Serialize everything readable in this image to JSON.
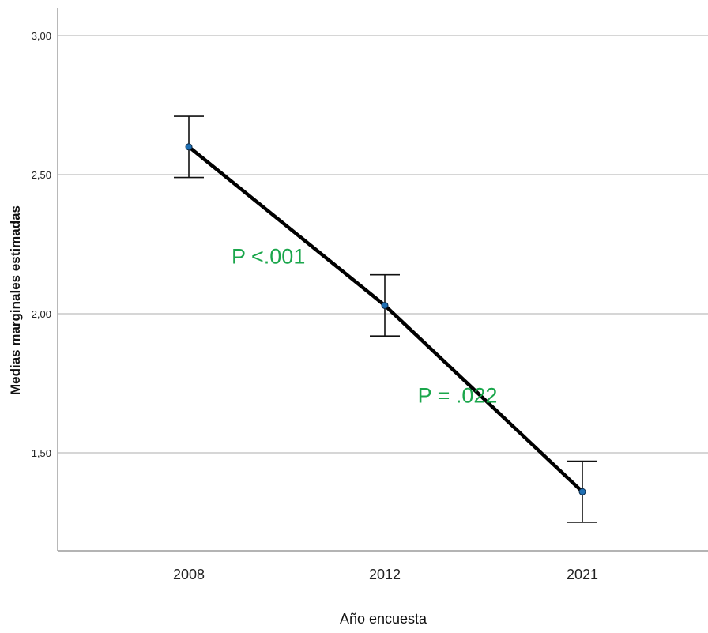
{
  "chart_data": {
    "type": "line",
    "title": "",
    "xlabel": "Año encuesta",
    "ylabel": "Medias marginales estimadas",
    "categories": [
      "2008",
      "2012",
      "2021"
    ],
    "series": [
      {
        "values": [
          2.6,
          2.03,
          1.36
        ],
        "error_low": [
          2.49,
          1.92,
          1.25
        ],
        "error_high": [
          2.71,
          2.14,
          1.47
        ],
        "color": "#000000",
        "marker_color": "#1f6fb3"
      }
    ],
    "ylim": [
      1.15,
      3.1
    ],
    "yticks": [
      1.5,
      2.0,
      2.5,
      3.0
    ],
    "ytick_labels": [
      "1,50",
      "2,00",
      "2,50",
      "3,00"
    ],
    "grid": true,
    "legend": "none",
    "annotations": [
      {
        "text": "P <.001",
        "x": 0.5,
        "y": 2.18,
        "color": "#1aa64b"
      },
      {
        "text": "P = .022",
        "x": 1.45,
        "y": 1.68,
        "color": "#1aa64b"
      }
    ]
  }
}
